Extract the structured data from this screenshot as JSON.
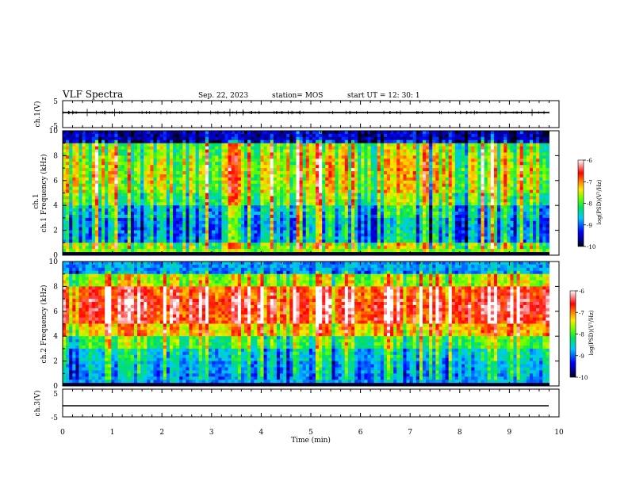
{
  "header": {
    "title": "VLF Spectra",
    "date": "Sep. 22, 2023",
    "station": "station= MOS",
    "start": "start  UT =   12: 30: 1"
  },
  "chart_data": [
    {
      "type": "line",
      "title": "ch.1(V)",
      "ylabel": "ch.1(V)",
      "ylim": [
        -5,
        5
      ],
      "y_ticks": [
        "5",
        "-5"
      ],
      "xlim": [
        0,
        10
      ],
      "series": [
        {
          "name": "ch.1 waveform",
          "x": [
            0,
            9.8
          ],
          "values": [
            0,
            0
          ]
        }
      ]
    },
    {
      "type": "heatmap",
      "title": "ch.1 Frequency (kHz)",
      "ylabel": "ch.1 Frequency (kHz)",
      "ylim": [
        0,
        10
      ],
      "y_ticks": [
        "0",
        "2",
        "4",
        "6",
        "8",
        "10"
      ],
      "xlim": [
        0,
        9.8
      ],
      "colorbar": {
        "label": "log(PSD)(V²/Hz)",
        "range": [
          -10,
          -6
        ],
        "ticks": [
          "-6",
          "-7",
          "-8",
          "-9",
          "-10"
        ]
      },
      "band_levels": [
        {
          "f": 0.5,
          "v": -7.8
        },
        {
          "f": 1.5,
          "v": -8.8
        },
        {
          "f": 2.5,
          "v": -8.9
        },
        {
          "f": 3.5,
          "v": -8.6
        },
        {
          "f": 4.5,
          "v": -8.0
        },
        {
          "f": 5.5,
          "v": -7.7
        },
        {
          "f": 6.5,
          "v": -7.6
        },
        {
          "f": 7.5,
          "v": -7.7
        },
        {
          "f": 8.5,
          "v": -7.9
        },
        {
          "f": 9.5,
          "v": -9.6
        }
      ]
    },
    {
      "type": "heatmap",
      "title": "ch.2 Frequency (kHz)",
      "ylabel": "ch.2 Frequency (kHz)",
      "ylim": [
        0,
        10
      ],
      "y_ticks": [
        "0",
        "2",
        "4",
        "6",
        "8",
        "10"
      ],
      "xlim": [
        0,
        9.8
      ],
      "colorbar": {
        "label": "log(PSD)(V²/Hz)",
        "range": [
          -10,
          -6
        ],
        "ticks": [
          "-6",
          "-7",
          "-8",
          "-9",
          "-10"
        ]
      },
      "band_levels": [
        {
          "f": 0.5,
          "v": -8.8
        },
        {
          "f": 1.5,
          "v": -8.7
        },
        {
          "f": 2.5,
          "v": -8.5
        },
        {
          "f": 3.5,
          "v": -8.0
        },
        {
          "f": 4.5,
          "v": -7.2
        },
        {
          "f": 5.5,
          "v": -6.6
        },
        {
          "f": 6.5,
          "v": -6.5
        },
        {
          "f": 7.5,
          "v": -6.7
        },
        {
          "f": 8.5,
          "v": -7.6
        },
        {
          "f": 9.5,
          "v": -8.8
        }
      ]
    },
    {
      "type": "line",
      "title": "ch.3(V)",
      "ylabel": "ch.3(V)",
      "ylim": [
        -5,
        5
      ],
      "y_ticks": [
        "5",
        "-5"
      ],
      "xlim": [
        0,
        10
      ],
      "series": [
        {
          "name": "ch.3 waveform",
          "x": [
            0,
            9.8
          ],
          "values": [
            0,
            0
          ]
        }
      ],
      "xlabel": "Time (min)",
      "x_ticks": [
        "0",
        "1",
        "2",
        "3",
        "4",
        "5",
        "6",
        "7",
        "8",
        "9",
        "10"
      ]
    }
  ]
}
